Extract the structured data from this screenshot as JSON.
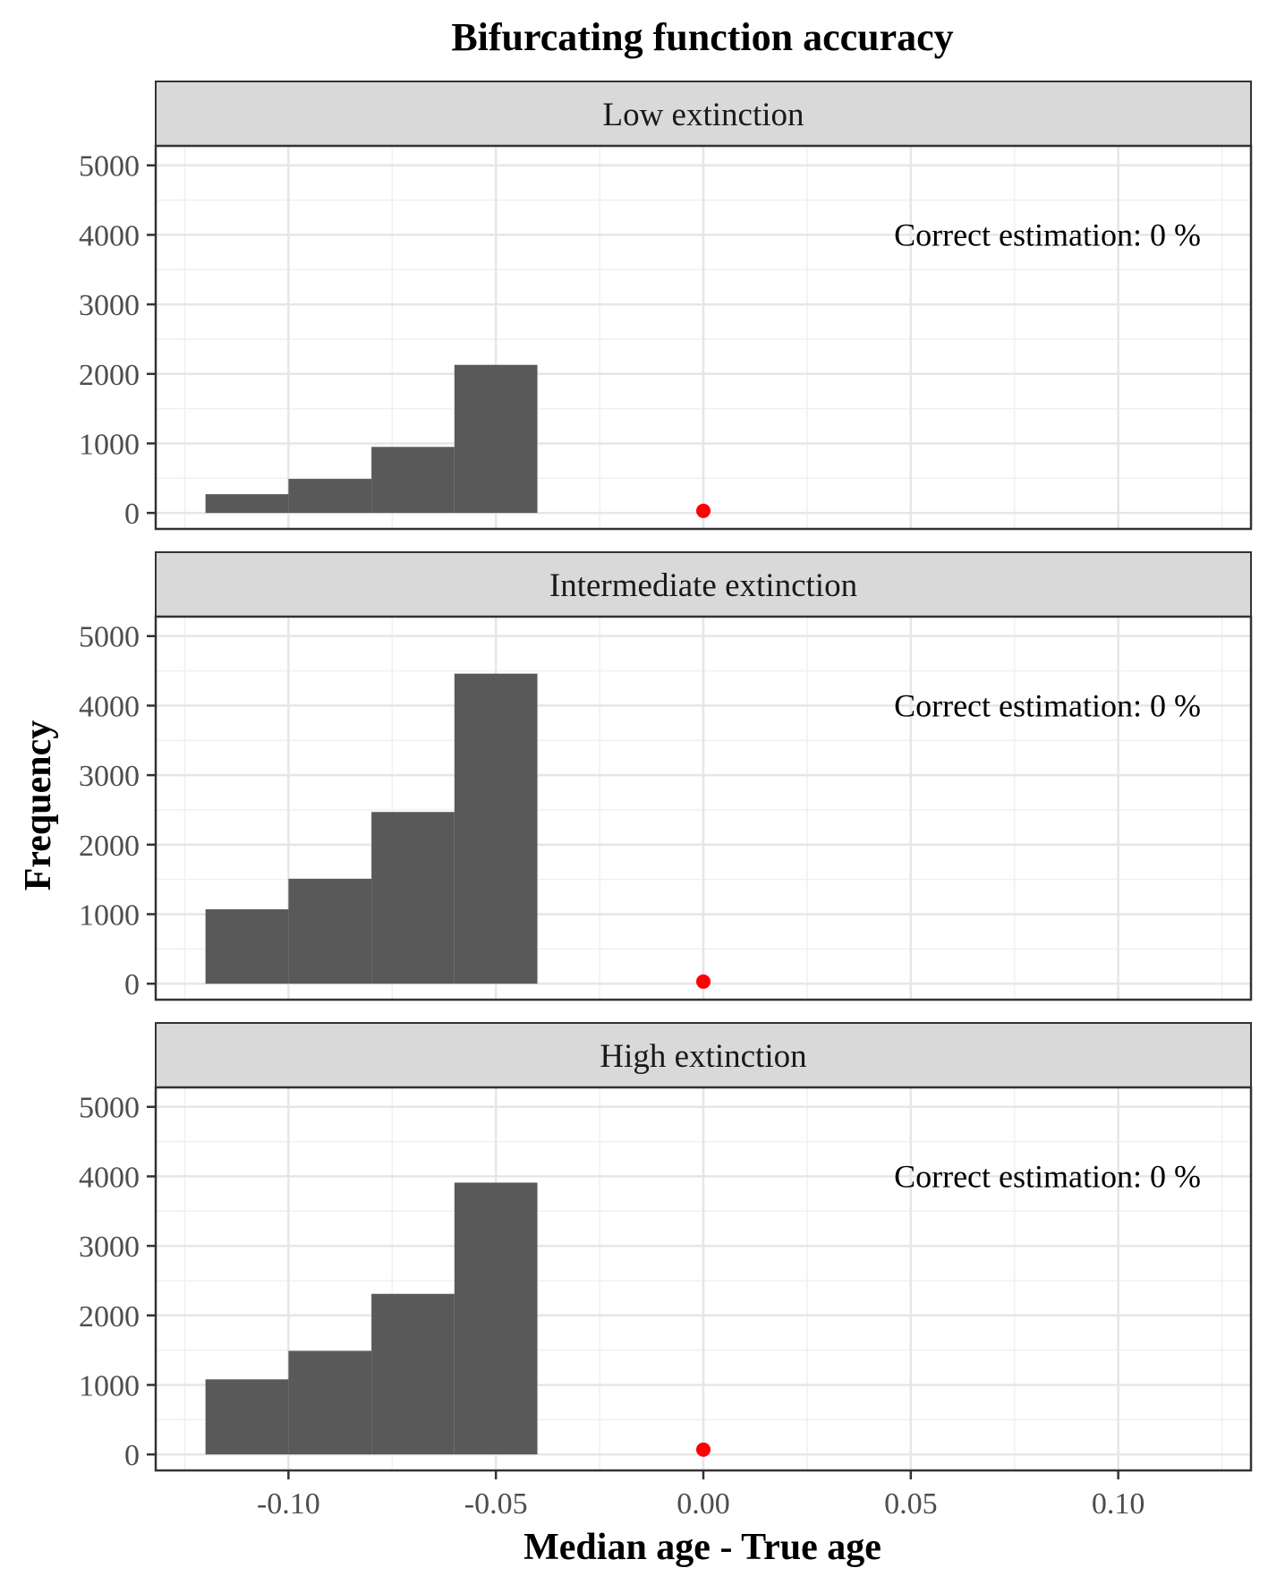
{
  "chart_data": {
    "type": "bar",
    "title": "Bifurcating function accuracy",
    "xlabel": "Median age - True age",
    "ylabel": "Frequency",
    "xlim": [
      -0.132,
      0.132
    ],
    "ylim": [
      -230,
      5280
    ],
    "x_ticks": [
      -0.1,
      -0.05,
      0.0,
      0.05,
      0.1
    ],
    "x_tick_labels": [
      "-0.10",
      "-0.05",
      "0.00",
      "0.05",
      "0.10"
    ],
    "y_ticks": [
      0,
      1000,
      2000,
      3000,
      4000,
      5000
    ],
    "y_tick_labels": [
      "0",
      "1000",
      "2000",
      "3000",
      "4000",
      "5000"
    ],
    "grid": true,
    "bar_color": "#595959",
    "marker_color": "#ff0000",
    "bin_edges": [
      -0.12,
      -0.1,
      -0.08,
      -0.06,
      -0.04
    ],
    "panels": [
      {
        "label": "Low extinction",
        "annotation": "Correct estimation: 0 %",
        "values": [
          270,
          490,
          950,
          2130
        ],
        "marker": {
          "x": 0.0,
          "y": 30
        }
      },
      {
        "label": "Intermediate extinction",
        "annotation": "Correct estimation: 0 %",
        "values": [
          1070,
          1510,
          2470,
          4460
        ],
        "marker": {
          "x": 0.0,
          "y": 30
        }
      },
      {
        "label": "High extinction",
        "annotation": "Correct estimation: 0 %",
        "values": [
          1080,
          1490,
          2310,
          3910
        ],
        "marker": {
          "x": 0.0,
          "y": 70
        }
      }
    ]
  }
}
